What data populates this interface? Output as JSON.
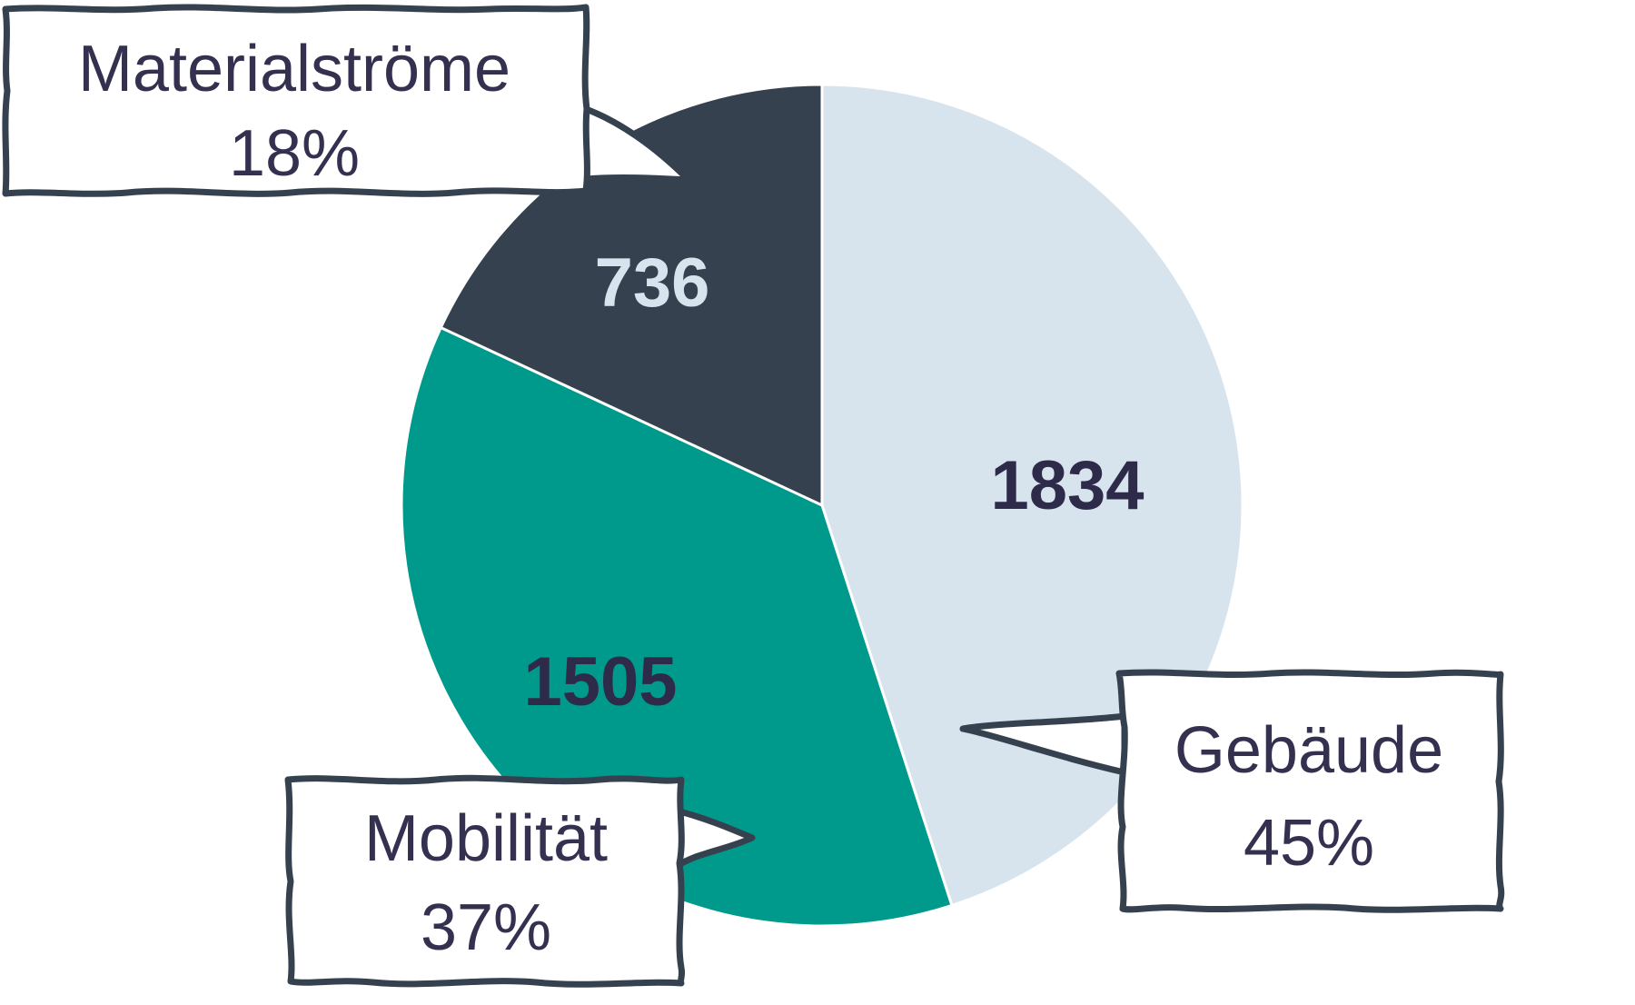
{
  "chart_data": {
    "type": "pie",
    "categories": [
      "Gebäude",
      "Mobilität",
      "Materialströme"
    ],
    "values": [
      1834,
      1505,
      736
    ],
    "percent_labels": [
      "45%",
      "37%",
      "18%"
    ],
    "colors": {
      "Gebäude": "#d8e4ed",
      "Mobilität": "#009a8d",
      "Materialströme": "#364150"
    },
    "value_label_colors": {
      "Gebäude": "#2e2b4a",
      "Mobilität": "#2e2b4a",
      "Materialströme": "#d8e4ed"
    },
    "start_angle": "12 o'clock",
    "direction": "clockwise",
    "legend": "none (callout boxes)"
  }
}
